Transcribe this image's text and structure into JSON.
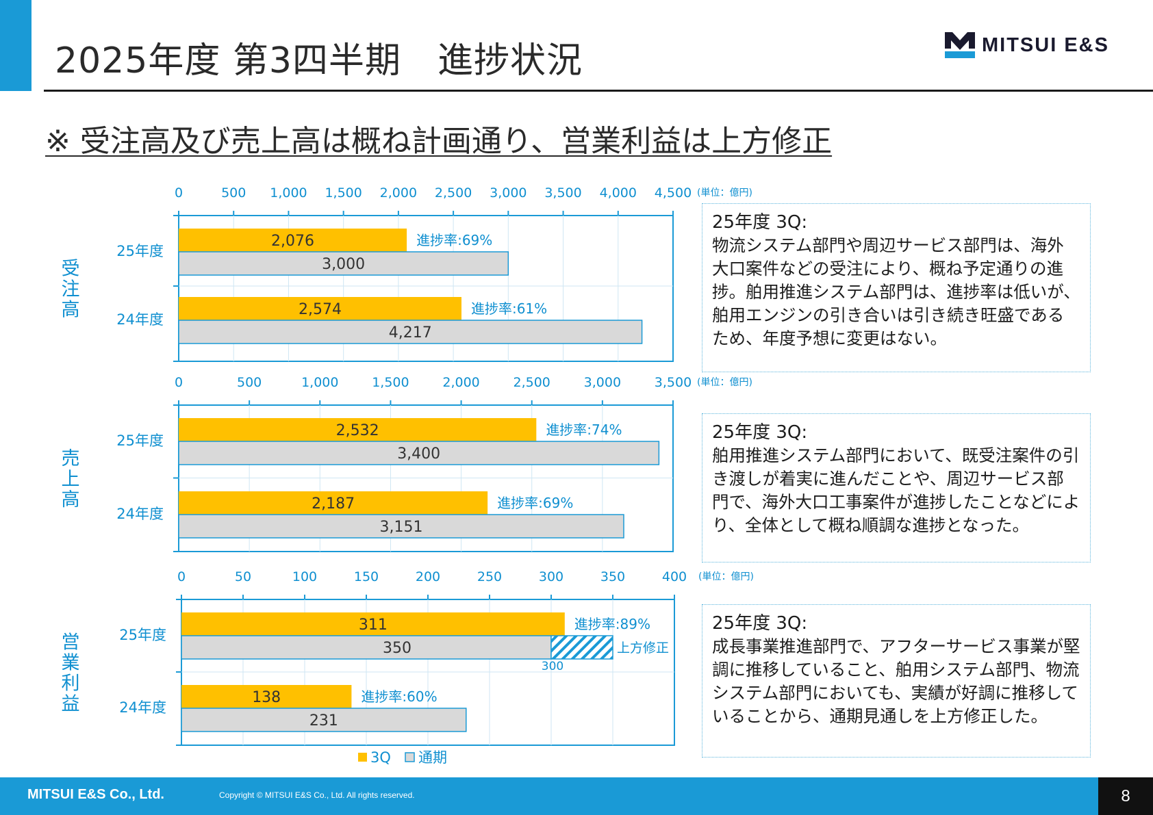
{
  "header": {
    "title": "2025年度 第3四半期　進捗状況",
    "logo_text": "MITSUI E&S"
  },
  "subtitle": "※ 受注高及び売上高は概ね計画通り、営業利益は上方修正",
  "legend": {
    "q3": "3Q",
    "full": "通期"
  },
  "colors": {
    "accent": "#1a9ad6",
    "q3": "#ffc000",
    "full": "#d9d9d9",
    "axis": "#1a9ad6",
    "text_blue": "#0f8fd0"
  },
  "chart_data": [
    {
      "id": "orders",
      "type": "bar",
      "title": "受注高",
      "unit": "(単位：億円)",
      "xlim": [
        0,
        4500
      ],
      "ticks": [
        "0",
        "500",
        "1,000",
        "1,500",
        "2,000",
        "2,500",
        "3,000",
        "3,500",
        "4,000",
        "4,500"
      ],
      "tick_values": [
        0,
        500,
        1000,
        1500,
        2000,
        2500,
        3000,
        3500,
        4000,
        4500
      ],
      "groups": [
        {
          "label": "25年度",
          "q3": 2076,
          "q3_label": "2,076",
          "full": 3000,
          "full_label": "3,000",
          "progress": "進捗率:69%"
        },
        {
          "label": "24年度",
          "q3": 2574,
          "q3_label": "2,574",
          "full": 4217,
          "full_label": "4,217",
          "progress": "進捗率:61%"
        }
      ]
    },
    {
      "id": "sales",
      "type": "bar",
      "title": "売上高",
      "unit": "(単位：億円)",
      "xlim": [
        0,
        3500
      ],
      "ticks": [
        "0",
        "500",
        "1,000",
        "1,500",
        "2,000",
        "2,500",
        "3,000",
        "3,500"
      ],
      "tick_values": [
        0,
        500,
        1000,
        1500,
        2000,
        2500,
        3000,
        3500
      ],
      "groups": [
        {
          "label": "25年度",
          "q3": 2532,
          "q3_label": "2,532",
          "full": 3400,
          "full_label": "3,400",
          "progress": "進捗率:74%"
        },
        {
          "label": "24年度",
          "q3": 2187,
          "q3_label": "2,187",
          "full": 3151,
          "full_label": "3,151",
          "progress": "進捗率:69%"
        }
      ]
    },
    {
      "id": "op_profit",
      "type": "bar",
      "title": "営業利益",
      "unit": "(単位：億円)",
      "xlim": [
        0,
        400
      ],
      "ticks": [
        "0",
        "50",
        "100",
        "150",
        "200",
        "250",
        "300",
        "350",
        "400"
      ],
      "tick_values": [
        0,
        50,
        100,
        150,
        200,
        250,
        300,
        350,
        400
      ],
      "groups": [
        {
          "label": "25年度",
          "q3": 311,
          "q3_label": "311",
          "full": 350,
          "full_label": "350",
          "progress": "進捗率:89%",
          "revision": {
            "from": 300,
            "to": 350,
            "label": "上方修正",
            "from_label": "300"
          }
        },
        {
          "label": "24年度",
          "q3": 138,
          "q3_label": "138",
          "full": 231,
          "full_label": "231",
          "progress": "進捗率:60%"
        }
      ]
    }
  ],
  "notes": [
    {
      "heading": "25年度 3Q:",
      "body": "物流システム部門や周辺サービス部門は、海外大口案件などの受注により、概ね予定通りの進捗。舶用推進システム部門は、進捗率は低いが、舶用エンジンの引き合いは引き続き旺盛であるため、年度予想に変更はない。"
    },
    {
      "heading": "25年度 3Q:",
      "body": "舶用推進システム部門において、既受注案件の引き渡しが着実に進んだことや、周辺サービス部門で、海外大口工事案件が進捗したことなどにより、全体として概ね順調な進捗となった。"
    },
    {
      "heading": "25年度 3Q:",
      "body": "成長事業推進部門で、アフターサービス事業が堅調に推移していること、舶用システム部門、物流システム部門においても、実績が好調に推移していることから、通期見通しを上方修正した。"
    }
  ],
  "footer": {
    "company": "MITSUI E&S Co., Ltd.",
    "copyright": "Copyright © MITSUI E&S Co., Ltd. All rights reserved.",
    "page": "8"
  }
}
